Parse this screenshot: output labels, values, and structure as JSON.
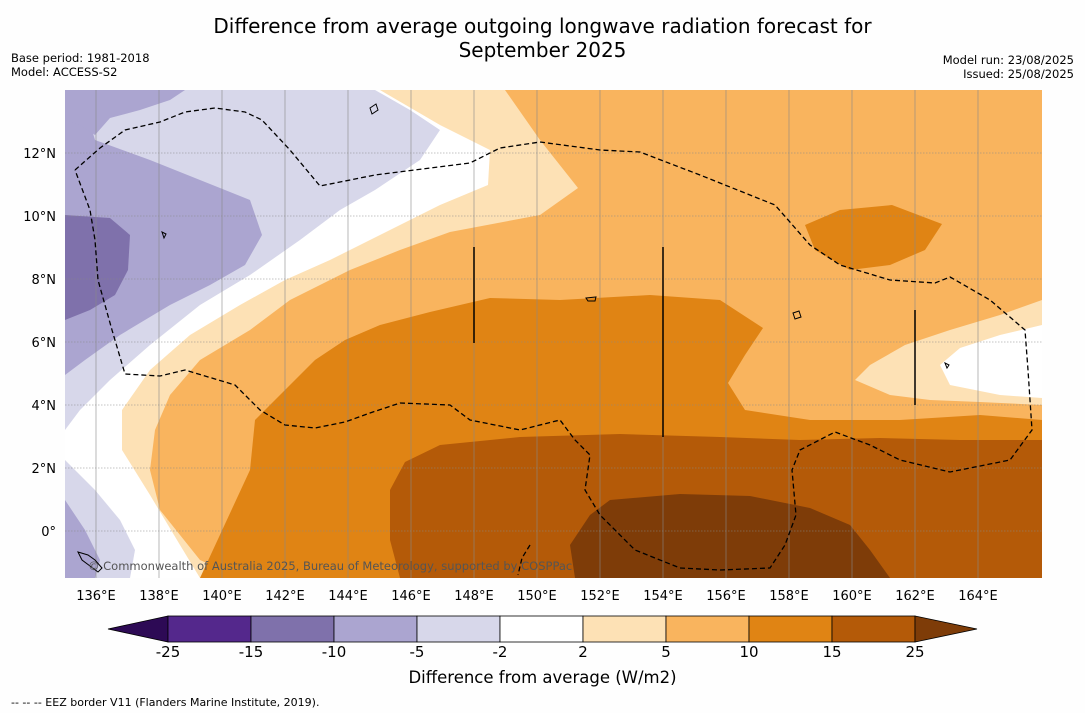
{
  "header": {
    "title_line1": "Difference from average outgoing longwave radiation forecast for",
    "title_line2": "September 2025",
    "base_period": "Base period: 1981-2018",
    "model": "Model: ACCESS-S2",
    "model_run": "Model run: 23/08/2025",
    "issued": "Issued: 25/08/2025"
  },
  "map": {
    "lat_labels": [
      "12°N",
      "10°N",
      "8°N",
      "6°N",
      "4°N",
      "2°N",
      "0°"
    ],
    "lon_labels": [
      "136°E",
      "138°E",
      "140°E",
      "142°E",
      "144°E",
      "146°E",
      "148°E",
      "150°E",
      "152°E",
      "154°E",
      "156°E",
      "158°E",
      "160°E",
      "162°E",
      "164°E"
    ],
    "copyright": "© Commonwealth of Australia 2025, Bureau of Meteorology, supported by COSPPac"
  },
  "colorbar": {
    "labels": [
      "-25",
      "-15",
      "-10",
      "-5",
      "-2",
      "2",
      "5",
      "10",
      "15",
      "25"
    ],
    "colors": [
      "#2d0a55",
      "#54288c",
      "#7f71ab",
      "#aba5d0",
      "#d7d7ea",
      "#ffffff",
      "#fde1b5",
      "#f9b45e",
      "#e08414",
      "#b45a08",
      "#7e3c08"
    ],
    "title": "Difference from average (W/m2)"
  },
  "footnote": "-- -- -- EEZ border V11 (Flanders Marine Institute, 2019)."
}
